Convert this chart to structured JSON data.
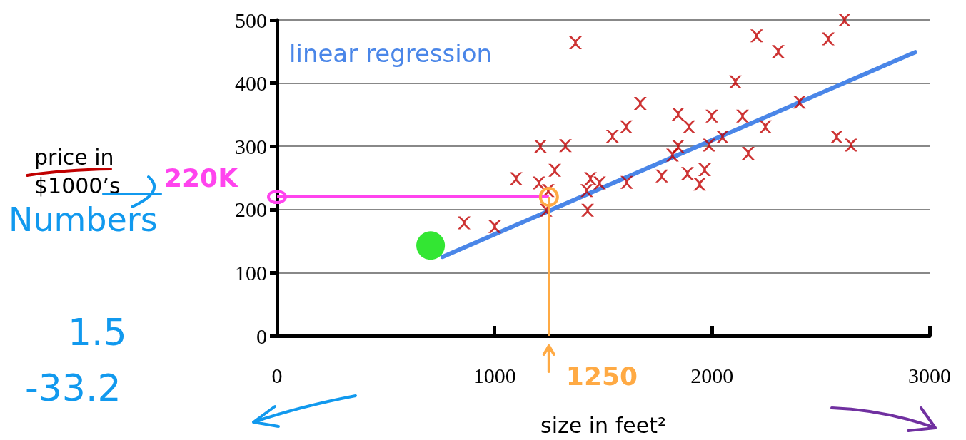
{
  "chart_data": {
    "type": "scatter",
    "xlabel": "size in feet²",
    "xlim": [
      0,
      3000
    ],
    "xticks": [
      0,
      1000,
      2000,
      3000
    ],
    "ylim": [
      0,
      500
    ],
    "yticks": [
      0,
      100,
      200,
      300,
      400,
      500
    ],
    "grid": "y",
    "marker": "cross",
    "series": [
      {
        "color": "#c00000",
        "x": [
          860,
          1001,
          1099,
          1211,
          1326,
          1277,
          1204,
          1247,
          1237,
          1441,
          1483,
          1424,
          1428,
          1372,
          1542,
          1605,
          1670,
          1608,
          1769,
          1818,
          1844,
          1844,
          1887,
          1894,
          1943,
          1966,
          1986,
          1999,
          2048,
          2107,
          2140,
          2166,
          2205,
          2245,
          2304,
          2402,
          2534,
          2609,
          2573,
          2639
        ],
        "values": [
          179,
          173,
          249,
          300,
          301,
          262,
          242,
          230,
          199,
          249,
          242,
          230,
          199,
          464,
          316,
          331,
          368,
          243,
          253,
          286,
          300,
          351,
          257,
          331,
          240,
          263,
          302,
          348,
          315,
          402,
          348,
          289,
          475,
          331,
          450,
          370,
          470,
          500,
          315,
          302
        ]
      },
      {
        "type": "line",
        "name": "linear regression",
        "color": "#4a86e8",
        "marker": "none",
        "line_style": "solid",
        "x": [
          761,
          2934
        ],
        "values": [
          125,
          449
        ]
      },
      {
        "color": "#00e000",
        "marker": "circle",
        "x": [
          706
        ],
        "values": [
          143
        ]
      }
    ],
    "ref_lines": [
      {
        "axis": "y",
        "value": 220,
        "label": "220K",
        "color": "#ff44ee"
      },
      {
        "axis": "x",
        "value": 1250,
        "label": "1250",
        "color": "#ffaa44"
      }
    ],
    "annotations": [
      "price in\n$1000’s",
      "Numbers",
      "1.5",
      "-33.2"
    ]
  }
}
